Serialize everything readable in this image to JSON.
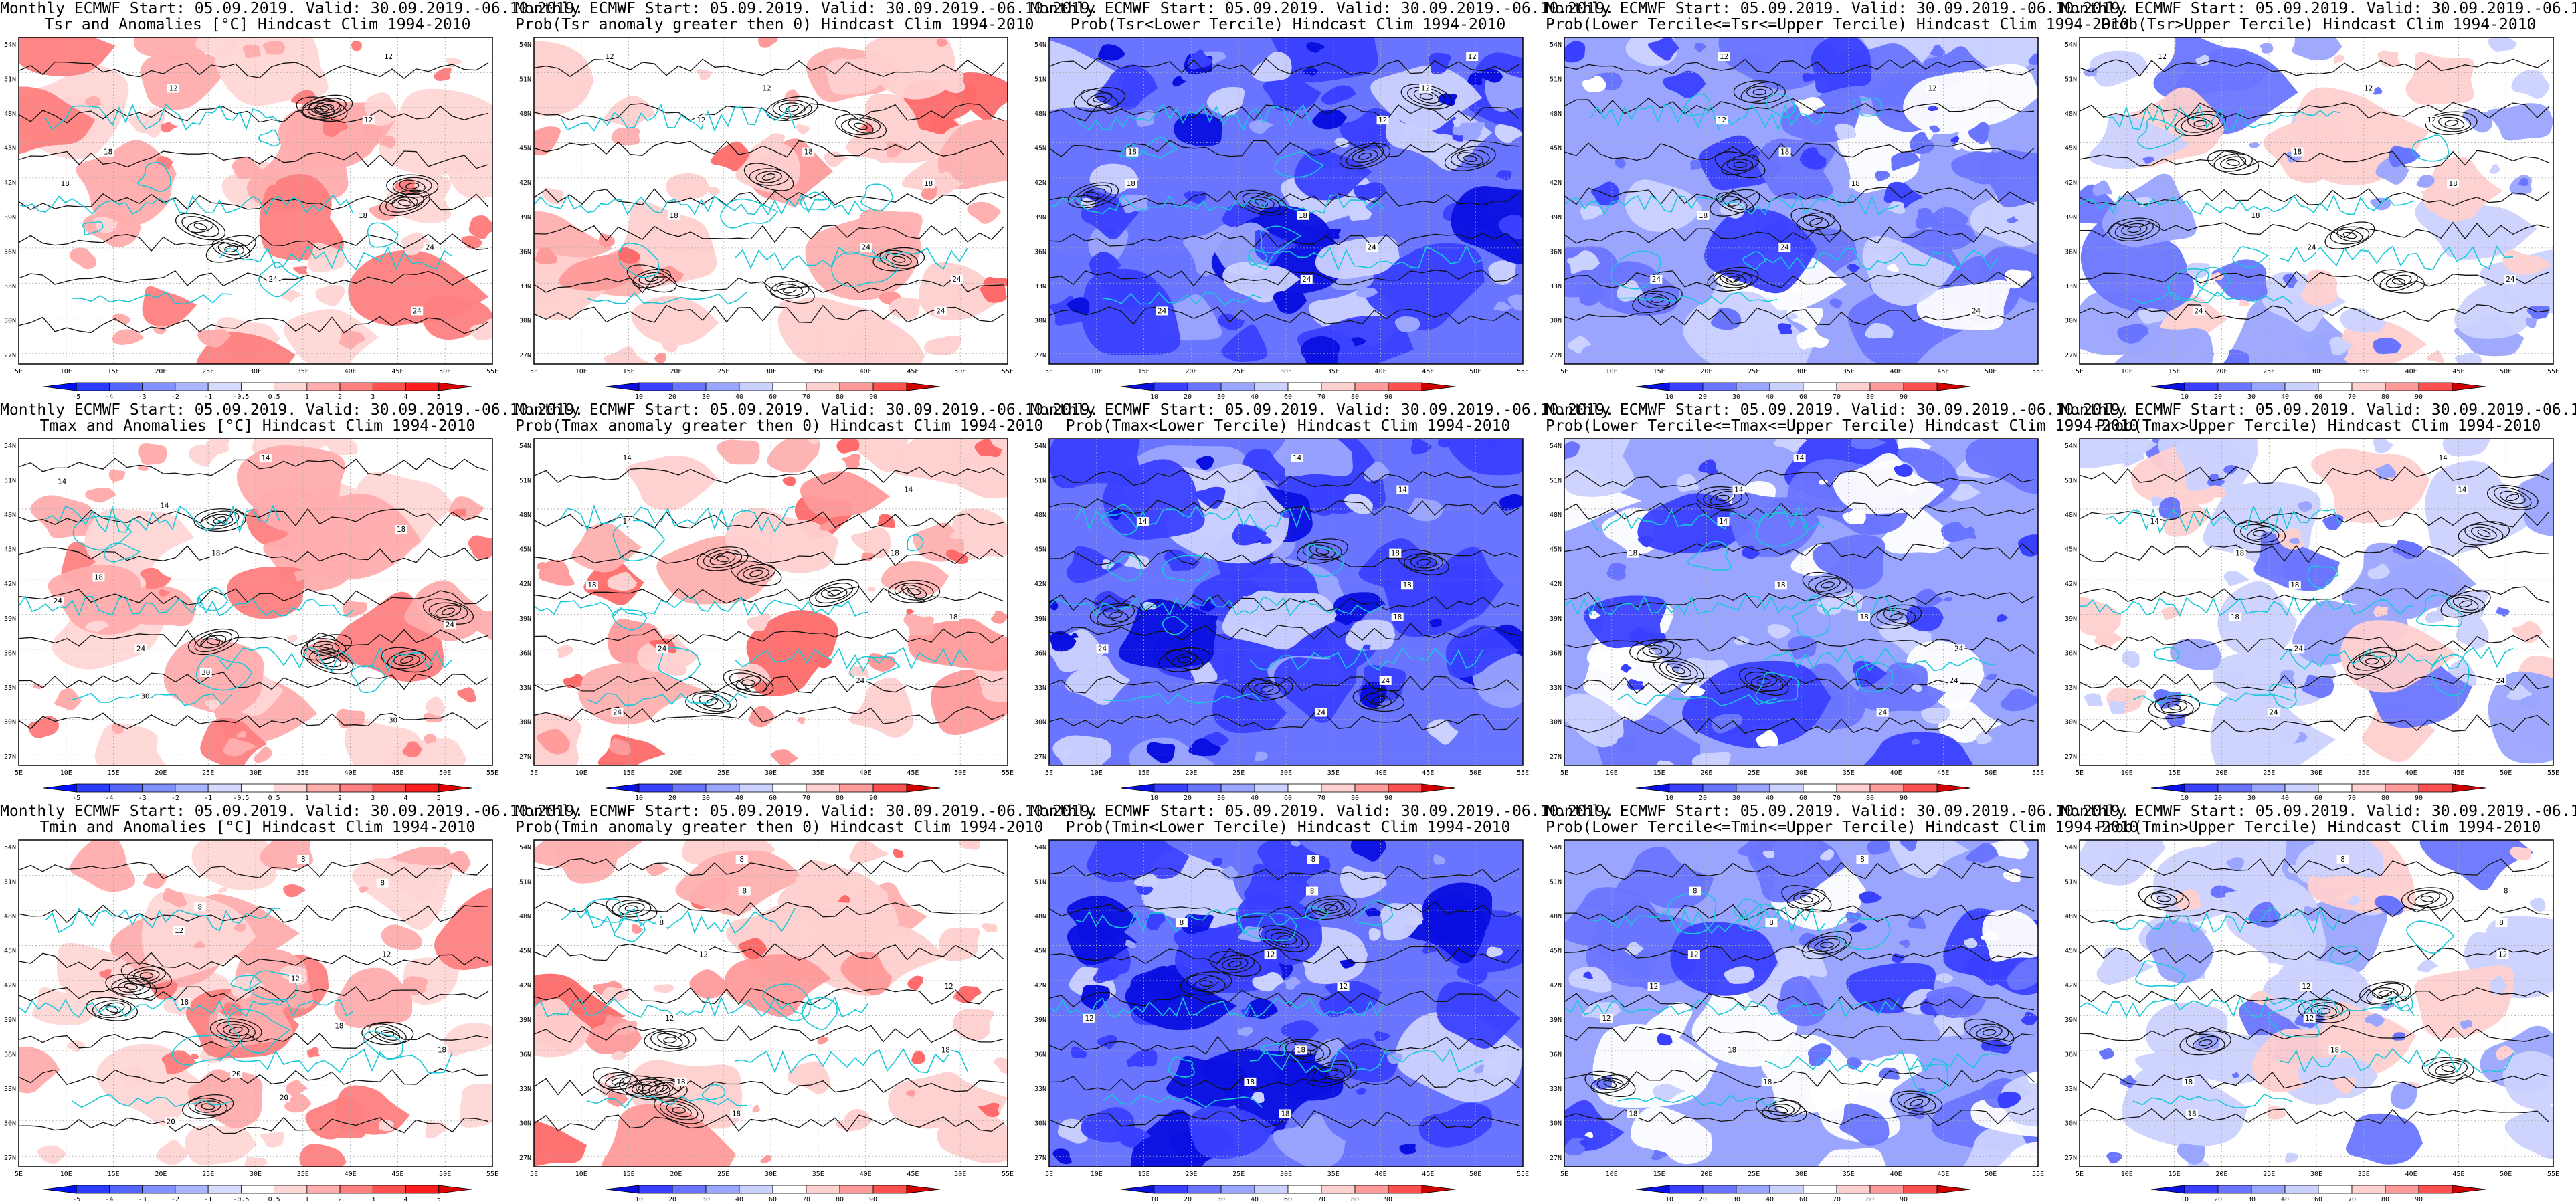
{
  "title_line1": "Monthly ECMWF Start: 05.09.2019. Valid: 30.09.2019.-06.10.2019.",
  "lat_labels": [
    "54N",
    "51N",
    "48N",
    "45N",
    "42N",
    "39N",
    "36N",
    "33N",
    "30N",
    "27N"
  ],
  "lon_labels": [
    "5E",
    "10E",
    "15E",
    "20E",
    "25E",
    "30E",
    "35E",
    "40E",
    "45E",
    "50E",
    "55E"
  ],
  "anomaly_scale": {
    "labels": [
      "-5",
      "-4",
      "-3",
      "-2",
      "-1",
      "-0.5",
      "0.5",
      "1",
      "2",
      "3",
      "4",
      "5"
    ],
    "colors": [
      "#0010ff",
      "#2a3dff",
      "#5566ff",
      "#8090ff",
      "#aab6ff",
      "#d5dbff",
      "#ffffff",
      "#ffd6d6",
      "#ffadad",
      "#ff8080",
      "#ff5050",
      "#ff1e1e",
      "#e00000"
    ]
  },
  "prob_scale": {
    "labels": [
      "10",
      "20",
      "30",
      "40",
      "60",
      "70",
      "80",
      "90"
    ],
    "colors": [
      "#0a10e0",
      "#3a40ff",
      "#6a75ff",
      "#9aa5ff",
      "#ccd2ff",
      "#ffffff",
      "#ffd0d0",
      "#ff9a9a",
      "#ff5050",
      "#d00000"
    ]
  },
  "rows": [
    {
      "variable": "Tsr",
      "panels": [
        {
          "title": "Tsr and Anomalies [°C] Hindcast Clim 1994-2010",
          "scale": "anomaly",
          "theme": "red",
          "labels": [
            "12",
            "18",
            "24"
          ]
        },
        {
          "title": "Prob(Tsr anomaly greater then 0) Hindcast Clim 1994-2010",
          "scale": "prob",
          "theme": "pink",
          "labels": [
            "12",
            "18",
            "24"
          ]
        },
        {
          "title": "Prob(Tsr<Lower Tercile) Hindcast Clim 1994-2010",
          "scale": "prob",
          "theme": "blue",
          "labels": [
            "12",
            "18",
            "24"
          ]
        },
        {
          "title": "Prob(Lower Tercile<=Tsr<=Upper Tercile) Hindcast Clim 1994-2010",
          "scale": "prob",
          "theme": "mid",
          "labels": [
            "12",
            "18",
            "24"
          ]
        },
        {
          "title": "Prob(Tsr>Upper Tercile) Hindcast Clim 1994-2010",
          "scale": "prob",
          "theme": "light",
          "labels": [
            "12",
            "18",
            "24"
          ]
        }
      ]
    },
    {
      "variable": "Tmax",
      "panels": [
        {
          "title": "Tmax and Anomalies [°C] Hindcast Clim 1994-2010",
          "scale": "anomaly",
          "theme": "red",
          "labels": [
            "14",
            "18",
            "24",
            "30"
          ]
        },
        {
          "title": "Prob(Tmax anomaly greater then 0) Hindcast Clim 1994-2010",
          "scale": "prob",
          "theme": "pink",
          "labels": [
            "14",
            "18",
            "24"
          ]
        },
        {
          "title": "Prob(Tmax<Lower Tercile) Hindcast Clim 1994-2010",
          "scale": "prob",
          "theme": "blue",
          "labels": [
            "14",
            "18",
            "24"
          ]
        },
        {
          "title": "Prob(Lower Tercile<=Tmax<=Upper Tercile) Hindcast Clim 1994-2010",
          "scale": "prob",
          "theme": "mid",
          "labels": [
            "14",
            "18",
            "24"
          ]
        },
        {
          "title": "Prob(Tmax>Upper Tercile) Hindcast Clim 1994-2010",
          "scale": "prob",
          "theme": "light",
          "labels": [
            "14",
            "18",
            "24"
          ]
        }
      ]
    },
    {
      "variable": "Tmin",
      "panels": [
        {
          "title": "Tmin and Anomalies [°C] Hindcast Clim 1994-2010",
          "scale": "anomaly",
          "theme": "red",
          "labels": [
            "8",
            "12",
            "18",
            "20"
          ]
        },
        {
          "title": "Prob(Tmin anomaly greater then 0) Hindcast Clim 1994-2010",
          "scale": "prob",
          "theme": "pink",
          "labels": [
            "8",
            "12",
            "18"
          ]
        },
        {
          "title": "Prob(Tmin<Lower Tercile) Hindcast Clim 1994-2010",
          "scale": "prob",
          "theme": "blue",
          "labels": [
            "8",
            "12",
            "18"
          ]
        },
        {
          "title": "Prob(Lower Tercile<=Tmin<=Upper Tercile) Hindcast Clim 1994-2010",
          "scale": "prob",
          "theme": "mid",
          "labels": [
            "8",
            "12",
            "18"
          ]
        },
        {
          "title": "Prob(Tmin>Upper Tercile) Hindcast Clim 1994-2010",
          "scale": "prob",
          "theme": "light",
          "labels": [
            "8",
            "12",
            "18"
          ]
        }
      ]
    }
  ]
}
